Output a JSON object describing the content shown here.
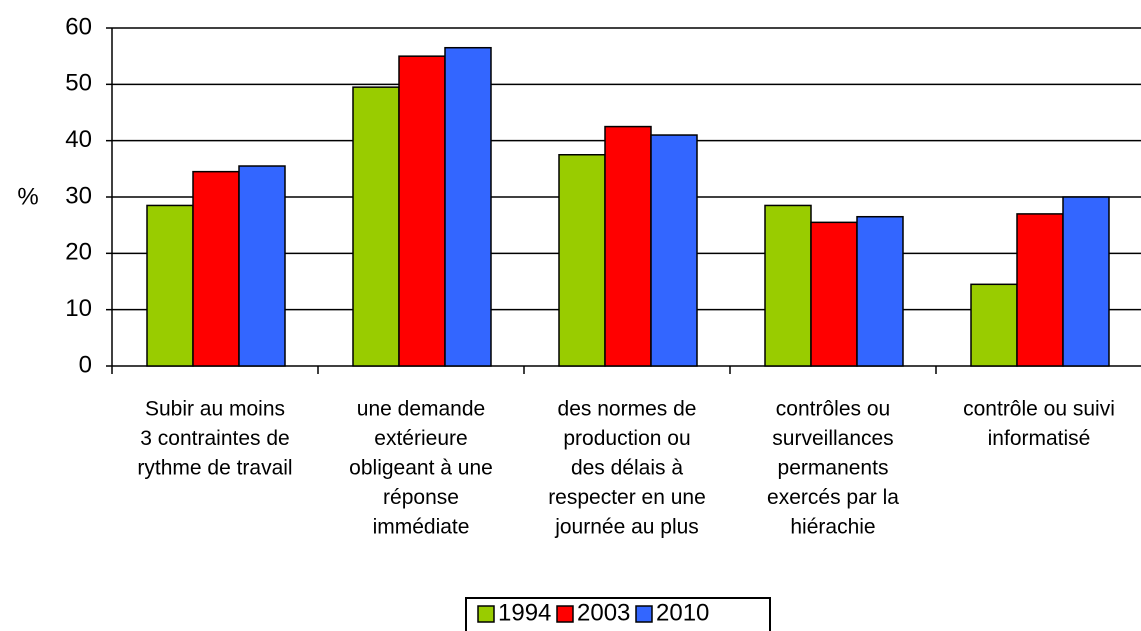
{
  "chart_data": {
    "type": "bar",
    "ylabel": "%",
    "categories": [
      [
        "Subir au moins",
        "3 contraintes de",
        "rythme de travail"
      ],
      [
        "une demande",
        "extérieure",
        "obligeant à une",
        "réponse",
        "immédiate"
      ],
      [
        "des normes de",
        "production ou",
        "des délais à",
        "respecter en une",
        "journée au plus"
      ],
      [
        "contrôles ou",
        "surveillances",
        "permanents",
        "exercés par la",
        "hiérachie"
      ],
      [
        "contrôle ou suivi",
        "informatisé"
      ]
    ],
    "series": [
      {
        "name": "1994",
        "color": "#99cc00",
        "values": [
          28.5,
          49.5,
          37.5,
          28.5,
          14.5
        ]
      },
      {
        "name": "2003",
        "color": "#ff0000",
        "values": [
          34.5,
          55,
          42.5,
          25.5,
          27
        ]
      },
      {
        "name": "2010",
        "color": "#3366ff",
        "values": [
          35.5,
          56.5,
          41,
          26.5,
          30
        ]
      }
    ],
    "ylim": [
      0,
      60
    ],
    "yticks": [
      0,
      10,
      20,
      30,
      40,
      50,
      60
    ],
    "grid": true,
    "legend": "bottom"
  }
}
